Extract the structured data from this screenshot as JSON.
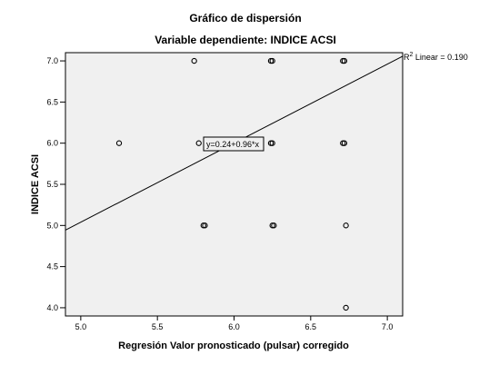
{
  "chart_data": {
    "type": "scatter",
    "title": "Gráfico de dispersión",
    "subtitle": "Variable dependiente: INDICE ACSI",
    "xlabel": "Regresión Valor pronosticado (pulsar) corregido",
    "ylabel": "INDICE ACSI",
    "xlim": [
      4.9,
      7.1
    ],
    "ylim": [
      3.9,
      7.1
    ],
    "x_ticks": [
      5.0,
      5.5,
      6.0,
      6.5,
      7.0
    ],
    "x_tick_labels": [
      "5.0",
      "5.5",
      "6.0",
      "6.5",
      "7.0"
    ],
    "y_ticks": [
      4.0,
      4.5,
      5.0,
      5.5,
      6.0,
      6.5,
      7.0
    ],
    "y_tick_labels": [
      "4.0",
      "4.5",
      "5.0",
      "5.5",
      "6.0",
      "6.5",
      "7.0"
    ],
    "grid": false,
    "points": [
      {
        "x": 5.25,
        "y": 6.0
      },
      {
        "x": 5.74,
        "y": 7.0
      },
      {
        "x": 5.77,
        "y": 6.0
      },
      {
        "x": 5.8,
        "y": 5.0
      },
      {
        "x": 5.81,
        "y": 5.0
      },
      {
        "x": 6.24,
        "y": 7.0
      },
      {
        "x": 6.25,
        "y": 7.0
      },
      {
        "x": 6.24,
        "y": 6.0
      },
      {
        "x": 6.25,
        "y": 6.0
      },
      {
        "x": 6.25,
        "y": 5.0
      },
      {
        "x": 6.26,
        "y": 5.0
      },
      {
        "x": 6.71,
        "y": 7.0
      },
      {
        "x": 6.72,
        "y": 7.0
      },
      {
        "x": 6.71,
        "y": 6.0
      },
      {
        "x": 6.72,
        "y": 6.0
      },
      {
        "x": 6.73,
        "y": 5.0
      },
      {
        "x": 6.73,
        "y": 4.0
      }
    ],
    "fit_line": {
      "intercept": 0.24,
      "slope": 0.96
    },
    "fit_equation_label": "y=0.24+0.96*x",
    "r2_label_prefix": "R",
    "r2_label_sup": "2",
    "r2_label_text": " Linear = 0.190",
    "colors": {
      "plot_background": "#f0f0f0",
      "frame": "#000000",
      "marker_stroke": "#000000",
      "fit_line": "#000000"
    }
  }
}
